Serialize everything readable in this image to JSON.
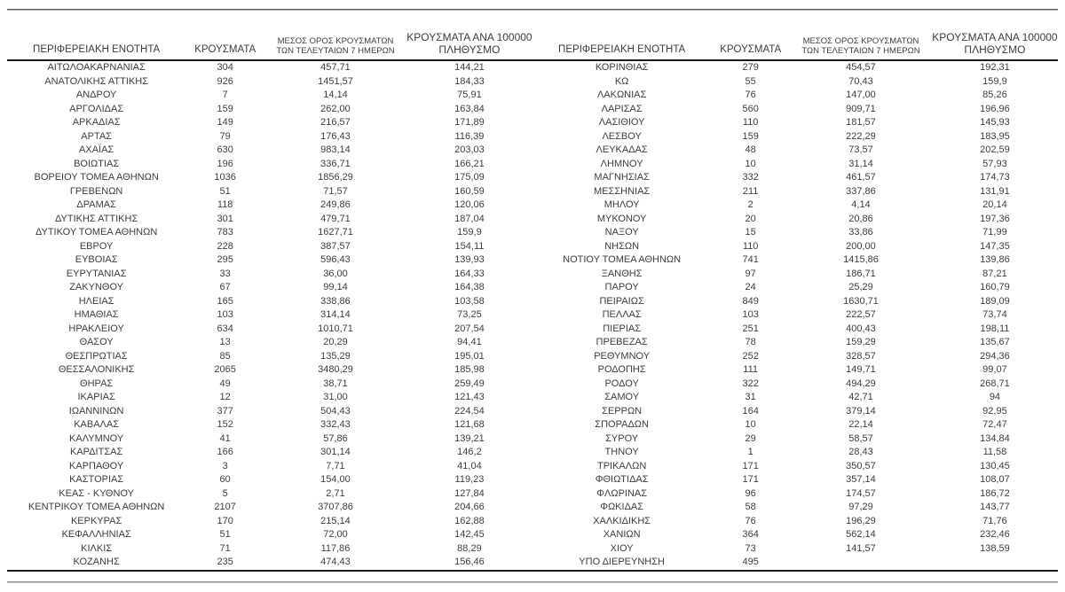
{
  "style": {
    "text_color": "#3d3d3d",
    "heavy_rule_color": "#1c1c1c",
    "light_rule_color": "#8c8c8c",
    "background": "#ffffff"
  },
  "table": {
    "header": {
      "region": "ΠΕΡΙΦΕΡΕΙΑΚΗ ΕΝΟΤΗΤΑ",
      "cases": "ΚΡΟΥΣΜΑΤΑ",
      "avg7_line1": "ΜΕΣΟΣ ΟΡΟΣ ΚΡΟΥΣΜΑΤΩΝ",
      "avg7_line2": "ΤΩΝ ΤΕΛΕΥΤΑΙΩΝ 7 ΗΜΕΡΩΝ",
      "per100k_line1": "ΚΡΟΥΣΜΑΤΑ ΑΝΑ 100000",
      "per100k_line2": "ΠΛΗΘΥΣΜΟ"
    },
    "left_rows": [
      [
        "ΑΙΤΩΛΟΑΚΑΡΝΑΝΙΑΣ",
        "304",
        "457,71",
        "144,21"
      ],
      [
        "ΑΝΑΤΟΛΙΚΗΣ ΑΤΤΙΚΗΣ",
        "926",
        "1451,57",
        "184,33"
      ],
      [
        "ΑΝΔΡΟΥ",
        "7",
        "14,14",
        "75,91"
      ],
      [
        "ΑΡΓΟΛΙΔΑΣ",
        "159",
        "262,00",
        "163,84"
      ],
      [
        "ΑΡΚΑΔΙΑΣ",
        "149",
        "216,57",
        "171,89"
      ],
      [
        "ΑΡΤΑΣ",
        "79",
        "176,43",
        "116,39"
      ],
      [
        "ΑΧΑΪΑΣ",
        "630",
        "983,14",
        "203,03"
      ],
      [
        "ΒΟΙΩΤΙΑΣ",
        "196",
        "336,71",
        "166,21"
      ],
      [
        "ΒΟΡΕΙΟΥ ΤΟΜΕΑ ΑΘΗΝΩΝ",
        "1036",
        "1856,29",
        "175,09"
      ],
      [
        "ΓΡΕΒΕΝΩΝ",
        "51",
        "71,57",
        "160,59"
      ],
      [
        "ΔΡΑΜΑΣ",
        "118",
        "249,86",
        "120,06"
      ],
      [
        "ΔΥΤΙΚΗΣ ΑΤΤΙΚΗΣ",
        "301",
        "479,71",
        "187,04"
      ],
      [
        "ΔΥΤΙΚΟΥ ΤΟΜΕΑ ΑΘΗΝΩΝ",
        "783",
        "1627,71",
        "159,9"
      ],
      [
        "ΕΒΡΟΥ",
        "228",
        "387,57",
        "154,11"
      ],
      [
        "ΕΥΒΟΙΑΣ",
        "295",
        "596,43",
        "139,93"
      ],
      [
        "ΕΥΡΥΤΑΝΙΑΣ",
        "33",
        "36,00",
        "164,33"
      ],
      [
        "ΖΑΚΥΝΘΟΥ",
        "67",
        "99,14",
        "164,38"
      ],
      [
        "ΗΛΕΙΑΣ",
        "165",
        "338,86",
        "103,58"
      ],
      [
        "ΗΜΑΘΙΑΣ",
        "103",
        "314,14",
        "73,25"
      ],
      [
        "ΗΡΑΚΛΕΙΟΥ",
        "634",
        "1010,71",
        "207,54"
      ],
      [
        "ΘΑΣΟΥ",
        "13",
        "20,29",
        "94,41"
      ],
      [
        "ΘΕΣΠΡΩΤΙΑΣ",
        "85",
        "135,29",
        "195,01"
      ],
      [
        "ΘΕΣΣΑΛΟΝΙΚΗΣ",
        "2065",
        "3480,29",
        "185,98"
      ],
      [
        "ΘΗΡΑΣ",
        "49",
        "38,71",
        "259,49"
      ],
      [
        "ΙΚΑΡΙΑΣ",
        "12",
        "31,00",
        "121,43"
      ],
      [
        "ΙΩΑΝΝΙΝΩΝ",
        "377",
        "504,43",
        "224,54"
      ],
      [
        "ΚΑΒΑΛΑΣ",
        "152",
        "332,43",
        "121,68"
      ],
      [
        "ΚΑΛΥΜΝΟΥ",
        "41",
        "57,86",
        "139,21"
      ],
      [
        "ΚΑΡΔΙΤΣΑΣ",
        "166",
        "301,14",
        "146,2"
      ],
      [
        "ΚΑΡΠΑΘΟΥ",
        "3",
        "7,71",
        "41,04"
      ],
      [
        "ΚΑΣΤΟΡΙΑΣ",
        "60",
        "154,00",
        "119,23"
      ],
      [
        "ΚΕΑΣ - ΚΥΘΝΟΥ",
        "5",
        "2,71",
        "127,84"
      ],
      [
        "ΚΕΝΤΡΙΚΟΥ ΤΟΜΕΑ ΑΘΗΝΩΝ",
        "2107",
        "3707,86",
        "204,66"
      ],
      [
        "ΚΕΡΚΥΡΑΣ",
        "170",
        "215,14",
        "162,88"
      ],
      [
        "ΚΕΦΑΛΛΗΝΙΑΣ",
        "51",
        "72,00",
        "142,45"
      ],
      [
        "ΚΙΛΚΙΣ",
        "71",
        "117,86",
        "88,29"
      ],
      [
        "ΚΟΖΑΝΗΣ",
        "235",
        "474,43",
        "156,46"
      ]
    ],
    "right_rows": [
      [
        "ΚΟΡΙΝΘΙΑΣ",
        "279",
        "454,57",
        "192,31"
      ],
      [
        "ΚΩ",
        "55",
        "70,43",
        "159,9"
      ],
      [
        "ΛΑΚΩΝΙΑΣ",
        "76",
        "147,00",
        "85,26"
      ],
      [
        "ΛΑΡΙΣΑΣ",
        "560",
        "909,71",
        "196,96"
      ],
      [
        "ΛΑΣΙΘΙΟΥ",
        "110",
        "181,57",
        "145,93"
      ],
      [
        "ΛΕΣΒΟΥ",
        "159",
        "222,29",
        "183,95"
      ],
      [
        "ΛΕΥΚΑΔΑΣ",
        "48",
        "73,57",
        "202,59"
      ],
      [
        "ΛΗΜΝΟΥ",
        "10",
        "31,14",
        "57,93"
      ],
      [
        "ΜΑΓΝΗΣΙΑΣ",
        "332",
        "461,57",
        "174,73"
      ],
      [
        "ΜΕΣΣΗΝΙΑΣ",
        "211",
        "337,86",
        "131,91"
      ],
      [
        "ΜΗΛΟΥ",
        "2",
        "4,14",
        "20,14"
      ],
      [
        "ΜΥΚΟΝΟΥ",
        "20",
        "20,86",
        "197,36"
      ],
      [
        "ΝΑΞΟΥ",
        "15",
        "33,86",
        "71,99"
      ],
      [
        "ΝΗΣΩΝ",
        "110",
        "200,00",
        "147,35"
      ],
      [
        "ΝΟΤΙΟΥ ΤΟΜΕΑ ΑΘΗΝΩΝ",
        "741",
        "1415,86",
        "139,86"
      ],
      [
        "ΞΑΝΘΗΣ",
        "97",
        "186,71",
        "87,21"
      ],
      [
        "ΠΑΡΟΥ",
        "24",
        "25,29",
        "160,79"
      ],
      [
        "ΠΕΙΡΑΙΩΣ",
        "849",
        "1630,71",
        "189,09"
      ],
      [
        "ΠΕΛΛΑΣ",
        "103",
        "222,57",
        "73,74"
      ],
      [
        "ΠΙΕΡΙΑΣ",
        "251",
        "400,43",
        "198,11"
      ],
      [
        "ΠΡΕΒΕΖΑΣ",
        "78",
        "159,29",
        "135,67"
      ],
      [
        "ΡΕΘΥΜΝΟΥ",
        "252",
        "328,57",
        "294,36"
      ],
      [
        "ΡΟΔΟΠΗΣ",
        "111",
        "149,71",
        "99,07"
      ],
      [
        "ΡΟΔΟΥ",
        "322",
        "494,29",
        "268,71"
      ],
      [
        "ΣΑΜΟΥ",
        "31",
        "42,71",
        "94"
      ],
      [
        "ΣΕΡΡΩΝ",
        "164",
        "379,14",
        "92,95"
      ],
      [
        "ΣΠΟΡΑΔΩΝ",
        "10",
        "22,14",
        "72,47"
      ],
      [
        "ΣΥΡΟΥ",
        "29",
        "58,57",
        "134,84"
      ],
      [
        "ΤΗΝΟΥ",
        "1",
        "28,43",
        "11,58"
      ],
      [
        "ΤΡΙΚΑΛΩΝ",
        "171",
        "350,57",
        "130,45"
      ],
      [
        "ΦΘΙΩΤΙΔΑΣ",
        "171",
        "357,14",
        "108,07"
      ],
      [
        "ΦΛΩΡΙΝΑΣ",
        "96",
        "174,57",
        "186,72"
      ],
      [
        "ΦΩΚΙΔΑΣ",
        "58",
        "97,29",
        "143,77"
      ],
      [
        "ΧΑΛΚΙΔΙΚΗΣ",
        "76",
        "196,29",
        "71,76"
      ],
      [
        "ΧΑΝΙΩΝ",
        "364",
        "562,14",
        "232,46"
      ],
      [
        "ΧΙΟΥ",
        "73",
        "141,57",
        "138,59"
      ],
      [
        "ΥΠΟ ΔΙΕΡΕΥΝΗΣΗ",
        "495",
        "",
        ""
      ]
    ]
  }
}
